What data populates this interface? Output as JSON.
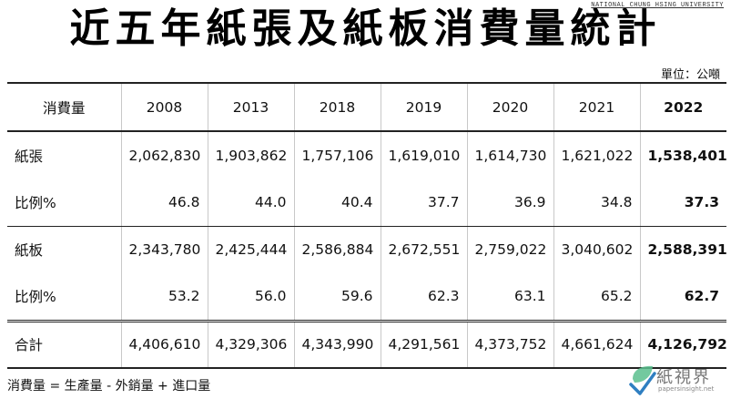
{
  "title": "近五年紙張及紙板消費量統計",
  "watermark_top": "NATIONAL CHUNG HSING UNIVERSITY",
  "unit": "單位：公噸",
  "table": {
    "header": [
      "消費量",
      "2008",
      "2013",
      "2018",
      "2019",
      "2020",
      "2021",
      "2022"
    ],
    "rows": [
      {
        "label": "紙張",
        "values": [
          "2,062,830",
          "1,903,862",
          "1,757,106",
          "1,619,010",
          "1,614,730",
          "1,621,022",
          "1,538,401"
        ]
      },
      {
        "label": "比例%",
        "values": [
          "46.8",
          "44.0",
          "40.4",
          "37.7",
          "36.9",
          "34.8",
          "37.3"
        ]
      },
      {
        "label": "紙板",
        "values": [
          "2,343,780",
          "2,425,444",
          "2,586,884",
          "2,672,551",
          "2,759,022",
          "3,040,602",
          "2,588,391"
        ]
      },
      {
        "label": "比例%",
        "values": [
          "53.2",
          "56.0",
          "59.6",
          "62.3",
          "63.1",
          "65.2",
          "62.7"
        ]
      },
      {
        "label": "合計",
        "values": [
          "4,406,610",
          "4,329,306",
          "4,343,990",
          "4,291,561",
          "4,373,752",
          "4,661,624",
          "4,126,792"
        ]
      }
    ]
  },
  "footnote": "消費量 = 生產量 - 外銷量 + 進口量",
  "logo": {
    "text": "紙視界",
    "subtext": "papersinsight.net",
    "colors": {
      "green": "#5bbf8e",
      "blue": "#2f7fc1"
    }
  }
}
